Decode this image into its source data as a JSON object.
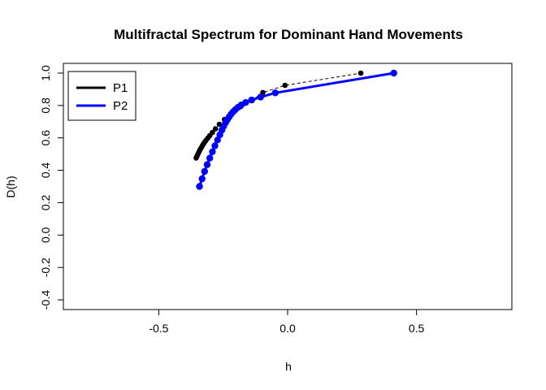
{
  "chart_data": {
    "type": "scatter",
    "title": "Multifractal Spectrum for Dominant Hand Movements",
    "xlabel": "h",
    "ylabel": "D(h)",
    "xlim": [
      -0.87,
      0.87
    ],
    "ylim": [
      -0.46,
      1.06
    ],
    "xticks": [
      -0.5,
      0.0,
      0.5
    ],
    "xtick_labels": [
      "-0.5",
      "0.0",
      "0.5"
    ],
    "yticks": [
      -0.4,
      -0.2,
      0.0,
      0.2,
      0.4,
      0.6,
      0.8,
      1.0
    ],
    "ytick_labels": [
      "-0.4",
      "-0.2",
      "0.0",
      "0.2",
      "0.4",
      "0.6",
      "0.8",
      "1.0"
    ],
    "grid": false,
    "legend": "top-left",
    "series": [
      {
        "name": "P1",
        "color": "#000000",
        "line_style": "dashed-thin",
        "marker": "circle",
        "x": [
          -0.355,
          -0.352,
          -0.349,
          -0.346,
          -0.343,
          -0.34,
          -0.336,
          -0.332,
          -0.328,
          -0.323,
          -0.317,
          -0.31,
          -0.302,
          -0.292,
          -0.28,
          -0.265,
          -0.245,
          -0.22,
          -0.182,
          -0.136,
          -0.096,
          -0.01,
          0.284
        ],
        "y": [
          0.476,
          0.486,
          0.496,
          0.506,
          0.516,
          0.526,
          0.537,
          0.548,
          0.559,
          0.571,
          0.584,
          0.598,
          0.614,
          0.633,
          0.656,
          0.684,
          0.714,
          0.749,
          0.793,
          0.835,
          0.88,
          0.924,
          1.0
        ]
      },
      {
        "name": "P2",
        "color": "#0000ff",
        "line_style": "solid-thick",
        "marker": "filled-circle",
        "x": [
          -0.342,
          -0.332,
          -0.322,
          -0.312,
          -0.302,
          -0.292,
          -0.282,
          -0.272,
          -0.263,
          -0.255,
          -0.248,
          -0.241,
          -0.234,
          -0.227,
          -0.22,
          -0.212,
          -0.203,
          -0.193,
          -0.18,
          -0.163,
          -0.14,
          -0.105,
          -0.048,
          0.412
        ],
        "y": [
          0.3,
          0.347,
          0.393,
          0.435,
          0.475,
          0.514,
          0.551,
          0.587,
          0.619,
          0.648,
          0.672,
          0.693,
          0.712,
          0.729,
          0.745,
          0.76,
          0.774,
          0.788,
          0.803,
          0.818,
          0.834,
          0.852,
          0.878,
          1.0
        ]
      }
    ]
  }
}
